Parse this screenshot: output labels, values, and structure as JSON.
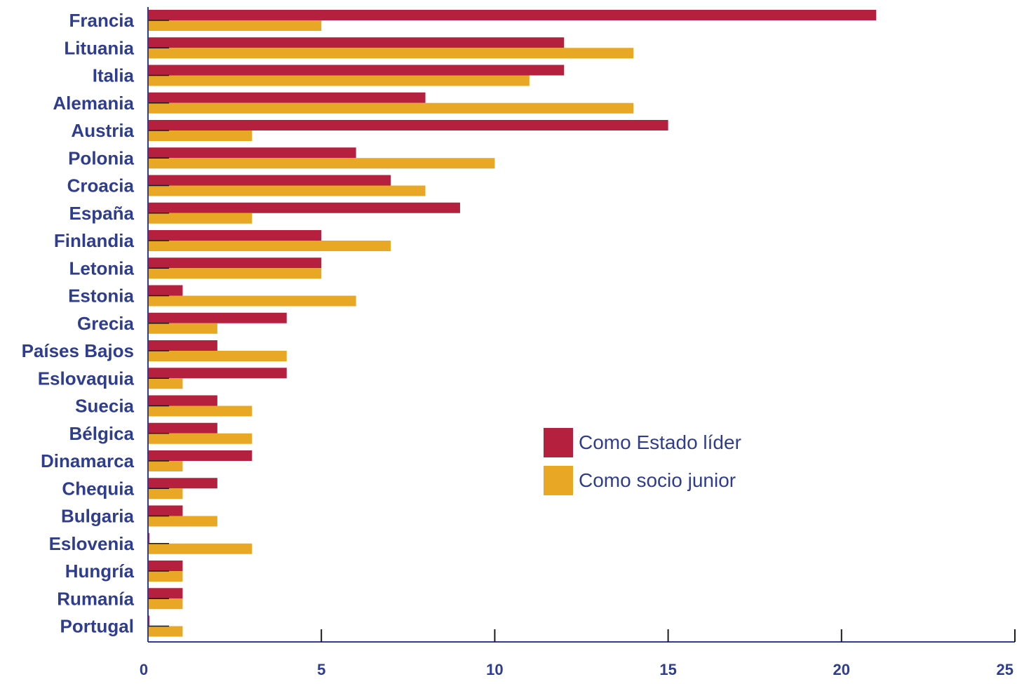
{
  "chart_data": {
    "type": "bar",
    "orientation": "horizontal",
    "categories": [
      "Francia",
      "Lituania",
      "Italia",
      "Alemania",
      "Austria",
      "Polonia",
      "Croacia",
      "España",
      "Finlandia",
      "Letonia",
      "Estonia",
      "Grecia",
      "Países Bajos",
      "Eslovaquia",
      "Suecia",
      "Bélgica",
      "Dinamarca",
      "Chequia",
      "Bulgaria",
      "Eslovenia",
      "Hungría",
      "Rumanía",
      "Portugal"
    ],
    "series": [
      {
        "name": "Como Estado líder",
        "color": "#b5203f",
        "values": [
          21,
          12,
          12,
          8,
          15,
          6,
          7,
          9,
          5,
          5,
          1,
          4,
          2,
          4,
          2,
          2,
          3,
          2,
          1,
          0,
          1,
          1,
          0
        ]
      },
      {
        "name": "Como socio junior",
        "color": "#e8a825",
        "values": [
          5,
          14,
          11,
          14,
          3,
          10,
          8,
          3,
          7,
          5,
          6,
          2,
          4,
          1,
          3,
          3,
          1,
          1,
          2,
          3,
          1,
          1,
          1
        ]
      }
    ],
    "xlim": [
      0,
      25
    ],
    "xticks": [
      0,
      5,
      10,
      15,
      20,
      25
    ],
    "grid": false,
    "legend_position": "center-right",
    "axis_color": "#2f3d8f"
  }
}
